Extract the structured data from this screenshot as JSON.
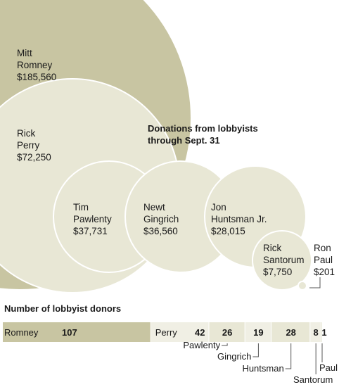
{
  "chart_data": [
    {
      "type": "bubble",
      "title": "Donations from lobbyists through Sept. 31",
      "series": [
        {
          "name": "Mitt Romney",
          "label_lines": [
            "Mitt",
            "Romney"
          ],
          "value_label": "$185,560",
          "value": 185560
        },
        {
          "name": "Rick Perry",
          "label_lines": [
            "Rick",
            "Perry"
          ],
          "value_label": "$72,250",
          "value": 72250
        },
        {
          "name": "Tim Pawlenty",
          "label_lines": [
            "Tim",
            "Pawlenty"
          ],
          "value_label": "$37,731",
          "value": 37731
        },
        {
          "name": "Newt Gingrich",
          "label_lines": [
            "Newt",
            "Gingrich"
          ],
          "value_label": "$36,560",
          "value": 36560
        },
        {
          "name": "Jon Huntsman Jr.",
          "label_lines": [
            "Jon",
            "Huntsman Jr."
          ],
          "value_label": "$28,015",
          "value": 28015
        },
        {
          "name": "Rick Santorum",
          "label_lines": [
            "Rick",
            "Santorum"
          ],
          "value_label": "$7,750",
          "value": 7750
        },
        {
          "name": "Ron Paul",
          "label_lines": [
            "Ron",
            "Paul"
          ],
          "value_label": "$201",
          "value": 201
        }
      ]
    },
    {
      "type": "bar",
      "orientation": "stacked-horizontal",
      "title": "Number of lobbyist donors",
      "categories": [
        "Romney",
        "Perry",
        "Pawlenty",
        "Gingrich",
        "Huntsman",
        "Santorum",
        "Paul"
      ],
      "values": [
        107,
        42,
        26,
        19,
        28,
        8,
        1
      ],
      "value_labels": [
        "107",
        "42",
        "26",
        "19",
        "28",
        "8",
        "1"
      ]
    }
  ],
  "colors": {
    "romney_fill": "#c8c5a2",
    "light_fill": "#e8e7d5",
    "bubble_stroke": "#ffffff",
    "bar_alt_fill": "#f0efe4",
    "text": "#1a1a1a",
    "leader_line": "#555555"
  }
}
